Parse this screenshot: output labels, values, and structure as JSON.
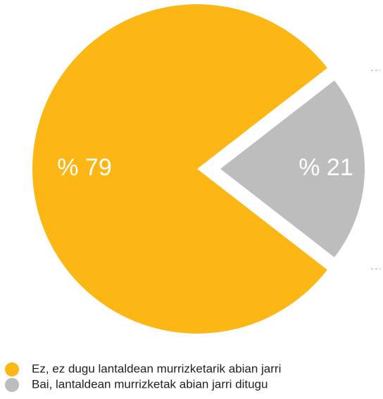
{
  "chart_data": {
    "type": "pie",
    "categories": [
      "Ez, ez dugu lantaldean murrizketarik abian jarri",
      "Bai, lantaldean murrizketak abian jarri ditugu"
    ],
    "values": [
      79,
      21
    ],
    "value_labels": [
      "% 79",
      "% 21"
    ],
    "colors": [
      "#fdb714",
      "#bdbdbd"
    ]
  }
}
